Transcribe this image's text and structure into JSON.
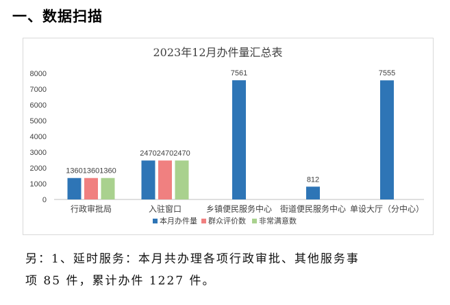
{
  "section_heading": "一、数据扫描",
  "chart_data": {
    "type": "bar",
    "title": "2023年12月办件量汇总表",
    "xlabel": "",
    "ylabel": "",
    "ylim": [
      0,
      8000
    ],
    "yticks": [
      0,
      1000,
      2000,
      3000,
      4000,
      5000,
      6000,
      7000,
      8000
    ],
    "grid": false,
    "legend_position": "bottom",
    "categories": [
      "行政审批局",
      "入驻窗口",
      "乡镇便民服务中心",
      "街道便民服务中心",
      "单设大厅（分中心）"
    ],
    "series": [
      {
        "name": "本月办件量",
        "color": "#2e75b6",
        "values": [
          1360,
          2470,
          7561,
          812,
          7555
        ]
      },
      {
        "name": "群众评价数",
        "color": "#f08080",
        "values": [
          1360,
          2470,
          null,
          null,
          null
        ]
      },
      {
        "name": "非常满意数",
        "color": "#a9d18e",
        "values": [
          1360,
          2470,
          null,
          null,
          null
        ]
      }
    ],
    "data_labels": [
      "136013601360",
      "247024702470",
      "7561",
      "812",
      "7555"
    ]
  },
  "note": {
    "line1": "另：1、延时服务：本月共办理各项行政审批、其他服务事",
    "line2": "项 85 件，累计办件 1227 件。"
  }
}
